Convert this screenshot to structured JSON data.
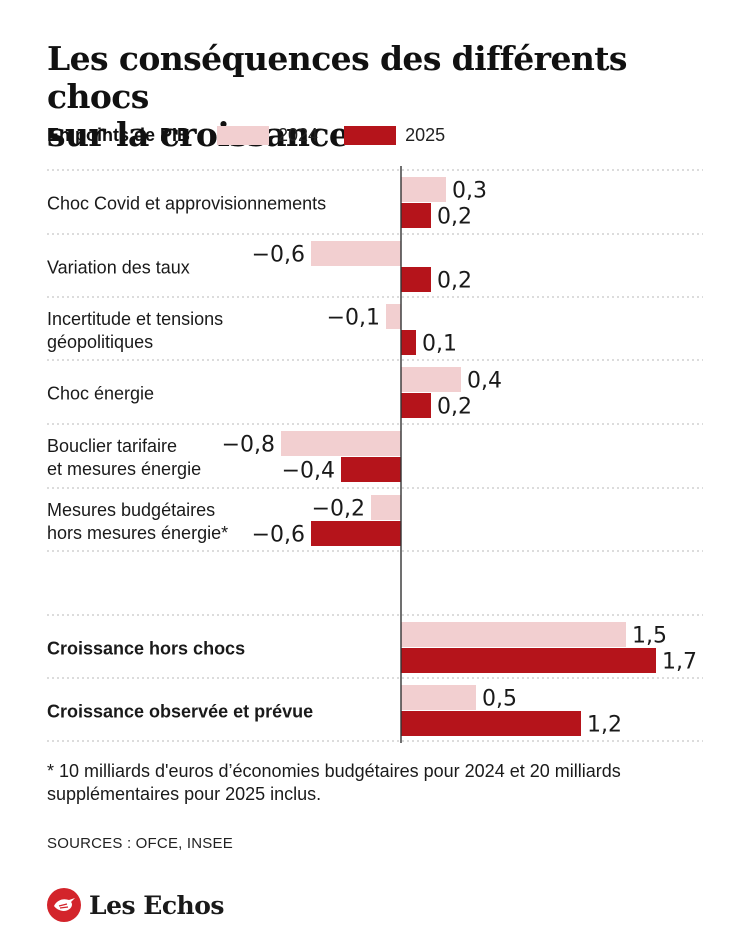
{
  "header": {
    "title_line1": "Les conséquences des différents chocs",
    "title_line2": "sur la croissance",
    "unit": "En points de PIB"
  },
  "legend": [
    {
      "label": "2024",
      "color": "#f2cfd0"
    },
    {
      "label": "2025",
      "color": "#b5141b"
    }
  ],
  "chart_data": {
    "type": "bar",
    "orientation": "horizontal",
    "ylabel": "En points de PIB",
    "categories": [
      [
        "Choc Covid et approvisionnements"
      ],
      [
        "Variation des taux"
      ],
      [
        "Incertitude et tensions",
        "géopolitiques"
      ],
      [
        "Choc énergie"
      ],
      [
        "Bouclier tarifaire",
        "et mesures énergie"
      ],
      [
        "Mesures budgétaires",
        "hors mesures énergie*"
      ],
      [
        "Croissance hors chocs"
      ],
      [
        "Croissance observée et prévue"
      ]
    ],
    "bold_categories": [
      false,
      false,
      false,
      false,
      false,
      false,
      true,
      true
    ],
    "series": [
      {
        "name": "2024",
        "color": "#f2cfd0",
        "values": [
          0.3,
          -0.6,
          -0.1,
          0.4,
          -0.8,
          -0.2,
          1.5,
          0.5
        ],
        "labels": [
          "0,3",
          "−0,6",
          "−0,1",
          "0,4",
          "−0,8",
          "−0,2",
          "1,5",
          "0,5"
        ]
      },
      {
        "name": "2025",
        "color": "#b5141b",
        "values": [
          0.2,
          0.2,
          0.1,
          0.2,
          -0.4,
          -0.6,
          1.7,
          1.2
        ],
        "labels": [
          "0,2",
          "0,2",
          "0,1",
          "0,2",
          "−0,4",
          "−0,6",
          "1,7",
          "1,2"
        ]
      }
    ],
    "legend_position": "top",
    "grid": "dotted row separators"
  },
  "footnote": {
    "line1": "* 10 milliards d'euros d’économies budgétaires pour 2024 et 20 milliards",
    "line2": "supplémentaires pour 2025 inclus."
  },
  "sources": "SOURCES : OFCE, INSEE",
  "brand": {
    "name": "Les Echos",
    "icon": "les-echos-bird-logo",
    "color": "#d3242b"
  }
}
